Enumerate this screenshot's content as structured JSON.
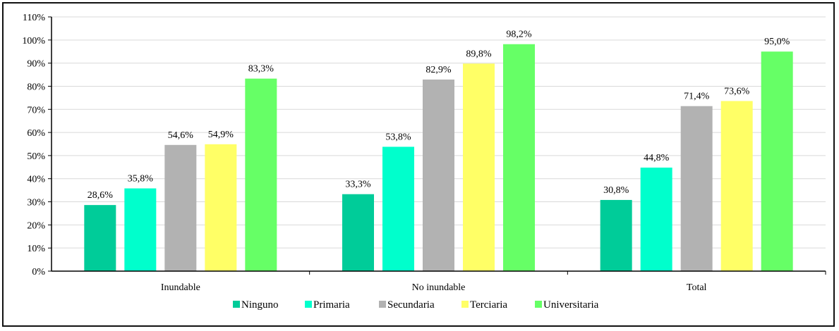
{
  "chart_data": {
    "type": "bar",
    "title": "",
    "xlabel": "",
    "ylabel": "",
    "categories": [
      "Inundable",
      "No inundable",
      "Total"
    ],
    "series": [
      {
        "name": "Ninguno",
        "color": "#00CC99",
        "values": [
          28.6,
          33.3,
          30.8
        ],
        "labels": [
          "28,6%",
          "33,3%",
          "30,8%"
        ]
      },
      {
        "name": "Primaria",
        "color": "#00FFCC",
        "values": [
          35.8,
          53.8,
          44.8
        ],
        "labels": [
          "35,8%",
          "53,8%",
          "44,8%"
        ]
      },
      {
        "name": "Secundaria",
        "color": "#B2B2B2",
        "values": [
          54.6,
          82.9,
          71.4
        ],
        "labels": [
          "54,6%",
          "82,9%",
          "71,4%"
        ]
      },
      {
        "name": "Terciaria",
        "color": "#FFFF66",
        "values": [
          54.9,
          89.8,
          73.6
        ],
        "labels": [
          "54,9%",
          "89,8%",
          "73,6%"
        ]
      },
      {
        "name": "Universitaria",
        "color": "#66FF66",
        "values": [
          83.3,
          98.2,
          95.0
        ],
        "labels": [
          "83,3%",
          "98,2%",
          "95,0%"
        ]
      }
    ],
    "ylim": [
      0,
      110
    ],
    "yticks": [
      0,
      10,
      20,
      30,
      40,
      50,
      60,
      70,
      80,
      90,
      100,
      110
    ],
    "ytick_labels": [
      "0%",
      "10%",
      "20%",
      "30%",
      "40%",
      "50%",
      "60%",
      "70%",
      "80%",
      "90%",
      "100%",
      "110%"
    ],
    "grid": true,
    "legend_position": "bottom"
  }
}
